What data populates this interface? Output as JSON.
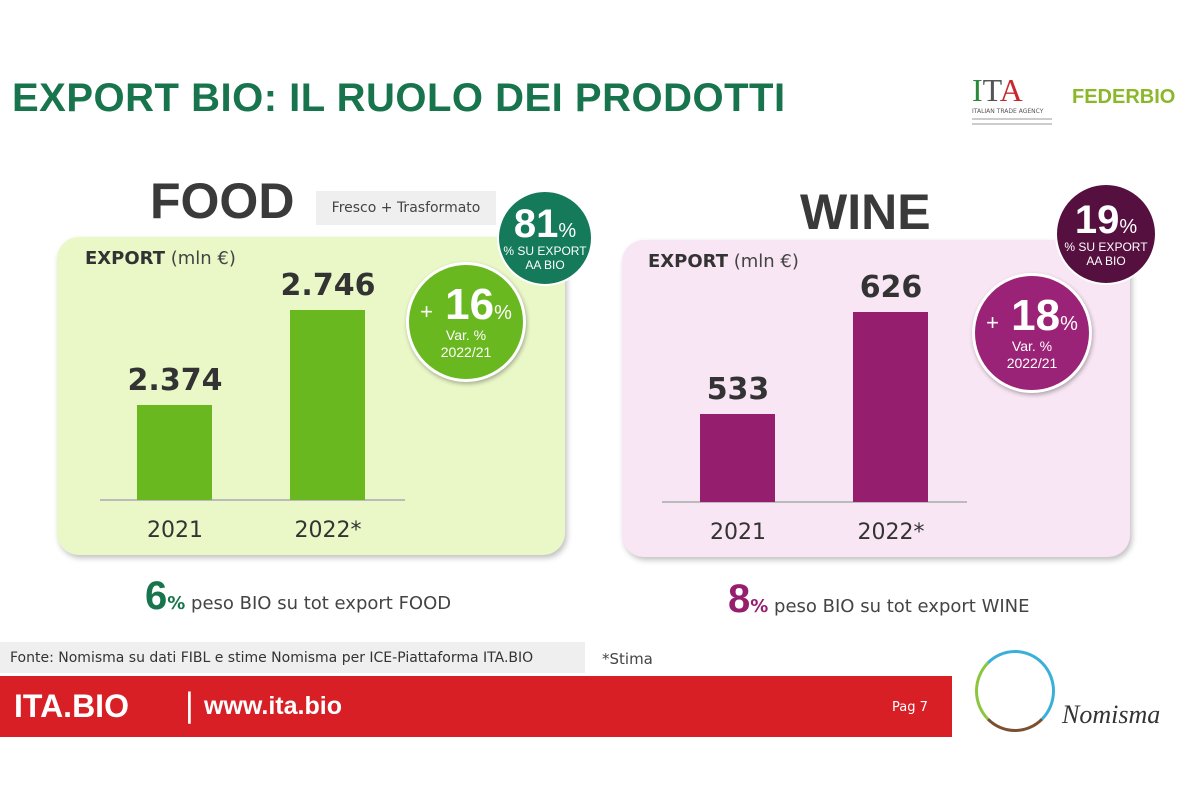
{
  "title": "EXPORT BIO: IL RUOLO DEI PRODOTTI",
  "logos": {
    "ita": "ITA",
    "ita_sub": "ITALIAN TRADE AGENCY",
    "federbio": "FEDERBIO",
    "nomisma": "Nomisma"
  },
  "colors": {
    "title": "#17744c",
    "food_bar": "#6ab820",
    "food_panel": "#eaf8c8",
    "wine_bar": "#951f6e",
    "wine_panel": "#f9e6f5",
    "footer": "#d81f26"
  },
  "food": {
    "heading": "FOOD",
    "tag": "Fresco + Trasformato",
    "export_label": "EXPORT",
    "unit": "(mln €)",
    "share": {
      "value": "81",
      "pct": "%",
      "text1": "% SU EXPORT",
      "text2": "AA BIO"
    },
    "var": {
      "plus": "+",
      "value": "16",
      "pct": "%",
      "text1": "Var. %",
      "text2": "2022/21"
    },
    "peso": {
      "value": "6",
      "pct": "%",
      "text": "peso BIO su tot export FOOD"
    }
  },
  "wine": {
    "heading": "WINE",
    "export_label": "EXPORT",
    "unit": "(mln €)",
    "share": {
      "value": "19",
      "pct": "%",
      "text1": "% SU EXPORT",
      "text2": "AA BIO"
    },
    "var": {
      "plus": "+",
      "value": "18",
      "pct": "%",
      "text1": "Var. %",
      "text2": "2022/21"
    },
    "peso": {
      "value": "8",
      "pct": "%",
      "text": "peso BIO su tot export WINE"
    }
  },
  "chart_data": [
    {
      "type": "bar",
      "title": "FOOD",
      "ylabel": "EXPORT (mln €)",
      "categories": [
        "2021",
        "2022*"
      ],
      "values": [
        2374,
        2746
      ],
      "value_labels": [
        "2.374",
        "2.746"
      ],
      "ylim": [
        2000,
        2800
      ],
      "grid": false,
      "color": "#6ab820"
    },
    {
      "type": "bar",
      "title": "WINE",
      "ylabel": "EXPORT (mln €)",
      "categories": [
        "2021",
        "2022*"
      ],
      "values": [
        533,
        626
      ],
      "value_labels": [
        "533",
        "626"
      ],
      "ylim": [
        450,
        640
      ],
      "grid": false,
      "color": "#951f6e"
    }
  ],
  "source": "Fonte: Nomisma su dati FIBL  e stime Nomisma per ICE-Piattaforma  ITA.BIO",
  "note": "*Stima",
  "footer": {
    "brand": "ITA.BIO",
    "separator": "|",
    "url": "www.ita.bio",
    "page": "Pag 7"
  }
}
